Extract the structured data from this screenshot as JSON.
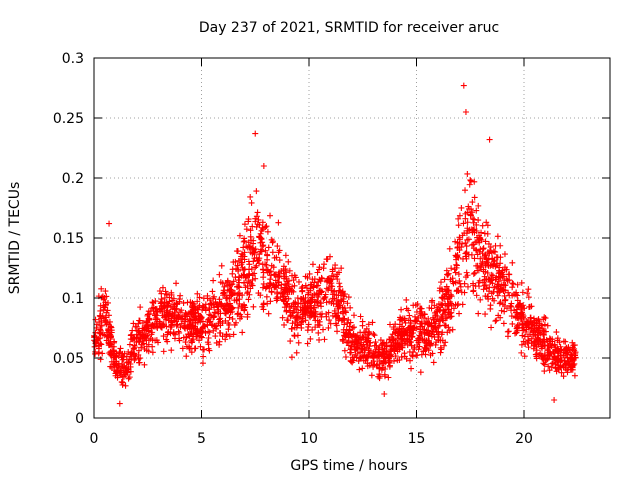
{
  "chart_data": {
    "type": "scatter",
    "title": "Day 237 of 2021, SRMTID for receiver aruc",
    "xlabel": "GPS time / hours",
    "ylabel": "SRMTID / TECUs",
    "xlim": [
      0,
      24
    ],
    "ylim": [
      0,
      0.3
    ],
    "x_ticks": [
      0,
      5,
      10,
      15,
      20
    ],
    "x_tick_labels": [
      "0",
      "5",
      "10",
      "15",
      "20"
    ],
    "y_ticks": [
      0,
      0.05,
      0.1,
      0.15,
      0.2,
      0.25,
      0.3
    ],
    "y_tick_labels": [
      "0",
      "0.05",
      "0.1",
      "0.15",
      "0.2",
      "0.25",
      "0.3"
    ],
    "grid": true,
    "marker": "+",
    "marker_color": "#ff0000",
    "data_range_hours": [
      0,
      22.4
    ],
    "envelope": {
      "x": [
        0,
        0.5,
        1.0,
        1.5,
        2.0,
        2.5,
        3.0,
        3.5,
        4.0,
        4.5,
        5.0,
        5.5,
        6.0,
        6.5,
        7.0,
        7.5,
        8.0,
        8.5,
        9.0,
        9.5,
        10.0,
        10.5,
        11.0,
        11.5,
        12.0,
        12.5,
        13.0,
        13.5,
        14.0,
        14.5,
        15.0,
        15.5,
        16.0,
        16.5,
        17.0,
        17.5,
        18.0,
        18.5,
        19.0,
        19.5,
        20.0,
        20.5,
        21.0,
        21.5,
        22.0,
        22.4
      ],
      "center": [
        0.06,
        0.09,
        0.045,
        0.04,
        0.065,
        0.07,
        0.085,
        0.09,
        0.08,
        0.075,
        0.08,
        0.085,
        0.09,
        0.1,
        0.12,
        0.14,
        0.13,
        0.12,
        0.1,
        0.09,
        0.095,
        0.1,
        0.11,
        0.09,
        0.065,
        0.06,
        0.055,
        0.05,
        0.065,
        0.07,
        0.075,
        0.07,
        0.08,
        0.1,
        0.13,
        0.16,
        0.13,
        0.12,
        0.11,
        0.1,
        0.08,
        0.07,
        0.06,
        0.05,
        0.05,
        0.05
      ],
      "spread": [
        0.025,
        0.04,
        0.02,
        0.02,
        0.025,
        0.025,
        0.03,
        0.035,
        0.03,
        0.03,
        0.03,
        0.035,
        0.035,
        0.04,
        0.05,
        0.06,
        0.05,
        0.045,
        0.04,
        0.035,
        0.035,
        0.035,
        0.04,
        0.035,
        0.025,
        0.025,
        0.025,
        0.02,
        0.025,
        0.03,
        0.03,
        0.03,
        0.035,
        0.045,
        0.06,
        0.07,
        0.05,
        0.045,
        0.04,
        0.035,
        0.03,
        0.025,
        0.025,
        0.02,
        0.02,
        0.02
      ]
    },
    "notable_points": [
      {
        "x": 0.7,
        "y": 0.162
      },
      {
        "x": 1.2,
        "y": 0.012
      },
      {
        "x": 7.5,
        "y": 0.237
      },
      {
        "x": 7.9,
        "y": 0.21
      },
      {
        "x": 13.5,
        "y": 0.02
      },
      {
        "x": 17.2,
        "y": 0.277
      },
      {
        "x": 17.3,
        "y": 0.255
      },
      {
        "x": 18.4,
        "y": 0.232
      },
      {
        "x": 21.4,
        "y": 0.015
      }
    ]
  }
}
